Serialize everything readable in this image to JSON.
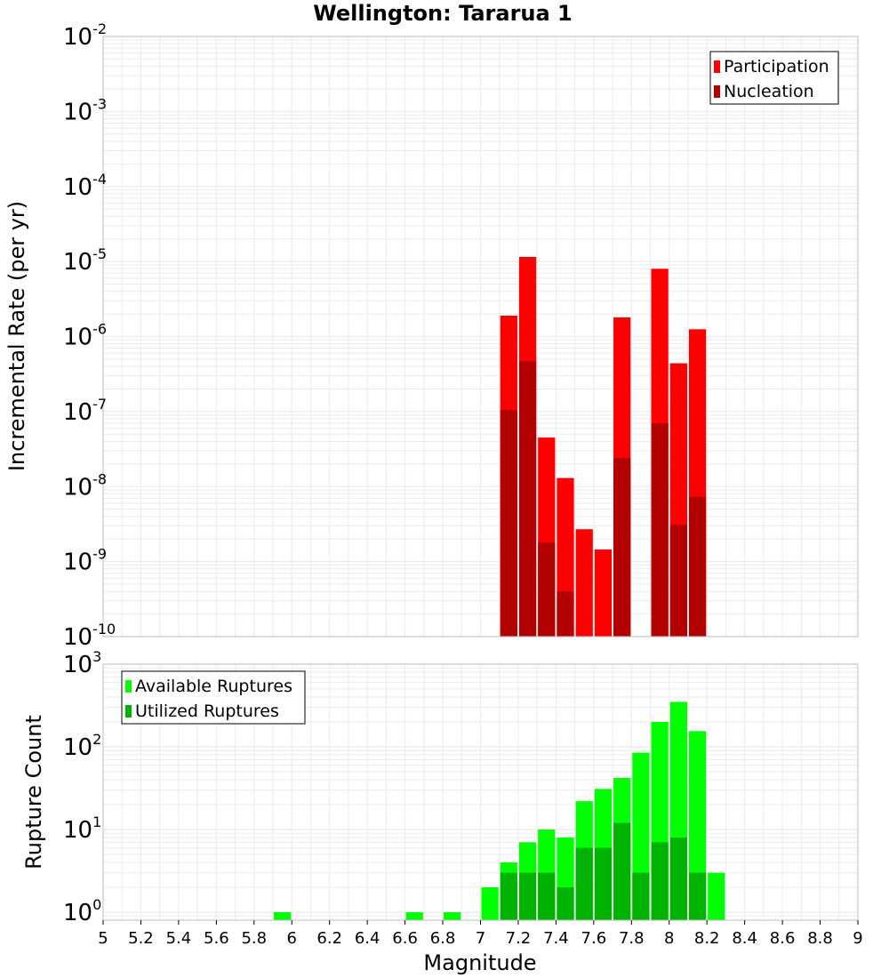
{
  "title": "Wellington: Tararua 1",
  "colors": {
    "participation": "#ff0000",
    "nucleation": "#b30000",
    "available": "#00ff00",
    "utilized": "#00b300",
    "grid": "#ebebeb",
    "frame": "#bdbdbd"
  },
  "chart_data": [
    {
      "type": "bar",
      "ylabel": "Incremental Rate (per yr)",
      "yscale": "log",
      "ylim": [
        1e-10,
        0.01
      ],
      "xlim": [
        5,
        9
      ],
      "ytick_exponents": [
        "-10",
        "-9",
        "-8",
        "-7",
        "-6",
        "-5",
        "-4",
        "-3",
        "-2"
      ],
      "grid": true,
      "legend_position": "top-right",
      "x": [
        7.15,
        7.25,
        7.35,
        7.45,
        7.55,
        7.65,
        7.75,
        7.95,
        8.05,
        8.15
      ],
      "series": [
        {
          "name": "Participation",
          "color_key": "participation",
          "values": [
            1.9e-06,
            1.15e-05,
            4.5e-08,
            1.3e-08,
            2.7e-09,
            1.45e-09,
            1.8e-06,
            8e-06,
            4.4e-07,
            1.25e-06
          ]
        },
        {
          "name": "Nucleation",
          "color_key": "nucleation",
          "values": [
            1.05e-07,
            4.7e-07,
            1.8e-09,
            4e-10,
            null,
            null,
            2.4e-08,
            7e-08,
            3.1e-09,
            7.3e-09
          ]
        }
      ]
    },
    {
      "type": "bar",
      "ylabel": "Rupture Count",
      "xlabel": "Magnitude",
      "yscale": "log",
      "ylim": [
        0.8,
        1000
      ],
      "xlim": [
        5,
        9
      ],
      "ytick_exponents": [
        "0",
        "1",
        "2",
        "3"
      ],
      "xticks": [
        "5",
        "5.2",
        "5.4",
        "5.6",
        "5.8",
        "6",
        "6.2",
        "6.4",
        "6.6",
        "6.8",
        "7",
        "7.2",
        "7.4",
        "7.6",
        "7.8",
        "8",
        "8.2",
        "8.4",
        "8.6",
        "8.8",
        "9"
      ],
      "grid": true,
      "legend_position": "top-left",
      "x": [
        5.95,
        6.65,
        6.85,
        7.05,
        7.15,
        7.25,
        7.35,
        7.45,
        7.55,
        7.65,
        7.75,
        7.85,
        7.95,
        8.05,
        8.15,
        8.25
      ],
      "series": [
        {
          "name": "Available Ruptures",
          "color_key": "available",
          "values": [
            1,
            1,
            1,
            2,
            4,
            7,
            10,
            8,
            22,
            31,
            42,
            85,
            200,
            350,
            155,
            3
          ]
        },
        {
          "name": "Utilized Ruptures",
          "color_key": "utilized",
          "values": [
            null,
            null,
            null,
            null,
            3,
            3,
            3,
            2,
            6,
            6,
            12,
            3,
            7,
            8,
            3,
            null
          ]
        }
      ]
    }
  ]
}
